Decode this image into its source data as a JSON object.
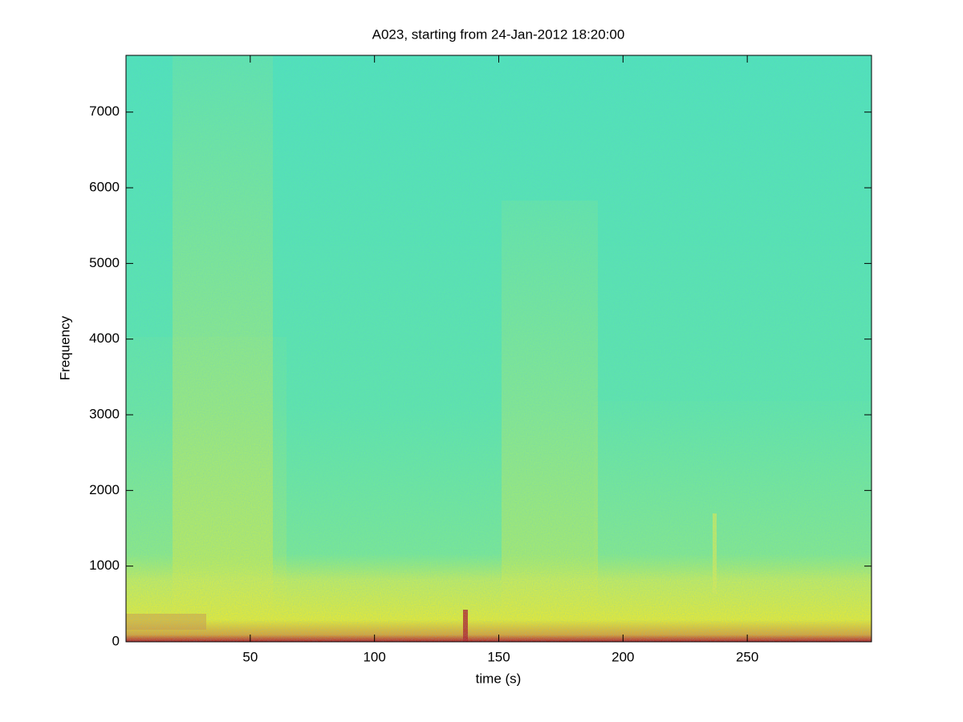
{
  "chart_data": {
    "type": "spectrogram",
    "title": "A023, starting from 24-Jan-2012 18:20:00",
    "x_label": "time (s)",
    "y_label": "Frequency",
    "xlim": [
      0,
      300
    ],
    "xticks": [
      50,
      100,
      150,
      200,
      250
    ],
    "ylim": [
      0,
      7750
    ],
    "yticks": [
      0,
      1000,
      2000,
      3000,
      4000,
      5000,
      6000,
      7000
    ]
  }
}
